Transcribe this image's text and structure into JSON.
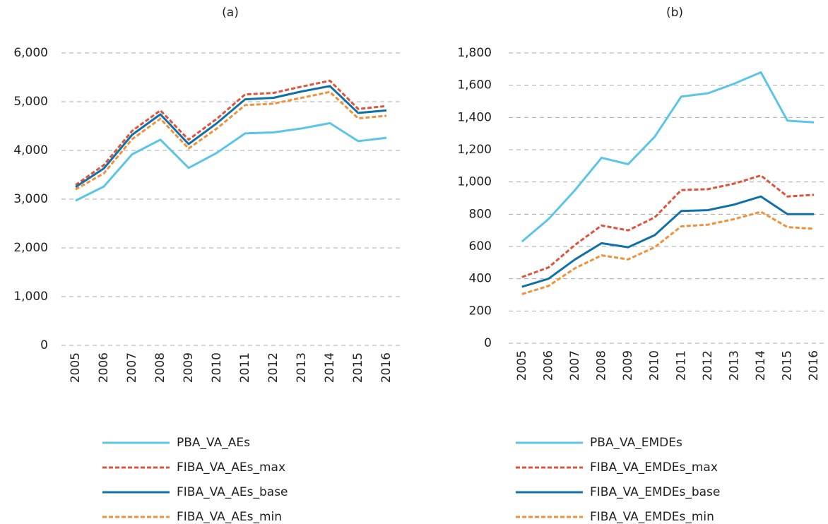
{
  "chart_data": [
    {
      "type": "line",
      "title": "(a)",
      "categories": [
        "2005",
        "2006",
        "2007",
        "2008",
        "2009",
        "2010",
        "2011",
        "2012",
        "2013",
        "2014",
        "2015",
        "2016"
      ],
      "ylim": [
        0,
        6000
      ],
      "yticks": [
        0,
        {
          "value": 1000,
          "label": "1,000"
        },
        {
          "value": 2000,
          "label": "2,000"
        },
        {
          "value": 3000,
          "label": "3,000"
        },
        {
          "value": 4000,
          "label": "4,000"
        },
        {
          "value": 5000,
          "label": "5,000"
        },
        {
          "value": 6000,
          "label": "6,000"
        }
      ],
      "grid": true,
      "series": [
        {
          "name": "PBA_VA_AEs",
          "color": "#5bc5e8",
          "dashed": false,
          "values": [
            2970,
            3260,
            3920,
            4220,
            3640,
            3950,
            4350,
            4370,
            4450,
            4560,
            4190,
            4260
          ]
        },
        {
          "name": "FIBA_VA_AEs_max",
          "color": "#e0523a",
          "dashed": true,
          "values": [
            3290,
            3700,
            4400,
            4820,
            4220,
            4650,
            5150,
            5180,
            5310,
            5430,
            4850,
            4910
          ]
        },
        {
          "name": "FIBA_VA_AEs_base",
          "color": "#1070a8",
          "dashed": false,
          "values": [
            3250,
            3630,
            4320,
            4740,
            4130,
            4560,
            5050,
            5080,
            5210,
            5320,
            4770,
            4820
          ]
        },
        {
          "name": "FIBA_VA_AEs_min",
          "color": "#f0913a",
          "dashed": true,
          "values": [
            3200,
            3530,
            4230,
            4650,
            4040,
            4450,
            4930,
            4960,
            5080,
            5200,
            4660,
            4710
          ]
        }
      ]
    },
    {
      "type": "line",
      "title": "(b)",
      "categories": [
        "2005",
        "2006",
        "2007",
        "2008",
        "2009",
        "2010",
        "2011",
        "2012",
        "2013",
        "2014",
        "2015",
        "2016"
      ],
      "ylim": [
        0,
        1800
      ],
      "yticks": [
        0,
        200,
        400,
        600,
        800,
        {
          "value": 1000,
          "label": "1,000"
        },
        {
          "value": 1200,
          "label": "1,200"
        },
        {
          "value": 1400,
          "label": "1,400"
        },
        {
          "value": 1600,
          "label": "1,600"
        },
        {
          "value": 1800,
          "label": "1,800"
        }
      ],
      "grid": true,
      "series": [
        {
          "name": "PBA_VA_EMDEs",
          "color": "#5bc5e8",
          "dashed": false,
          "values": [
            630,
            770,
            950,
            1150,
            1110,
            1280,
            1530,
            1550,
            1610,
            1680,
            1380,
            1370
          ]
        },
        {
          "name": "FIBA_VA_EMDEs_max",
          "color": "#e0523a",
          "dashed": true,
          "values": [
            410,
            470,
            610,
            730,
            700,
            780,
            950,
            955,
            990,
            1040,
            910,
            920
          ]
        },
        {
          "name": "FIBA_VA_EMDEs_base",
          "color": "#1070a8",
          "dashed": false,
          "values": [
            350,
            400,
            520,
            620,
            595,
            670,
            820,
            825,
            860,
            910,
            800,
            800
          ]
        },
        {
          "name": "FIBA_VA_EMDEs_min",
          "color": "#f0913a",
          "dashed": true,
          "values": [
            305,
            355,
            465,
            545,
            520,
            595,
            725,
            735,
            770,
            815,
            720,
            710
          ]
        }
      ]
    }
  ]
}
